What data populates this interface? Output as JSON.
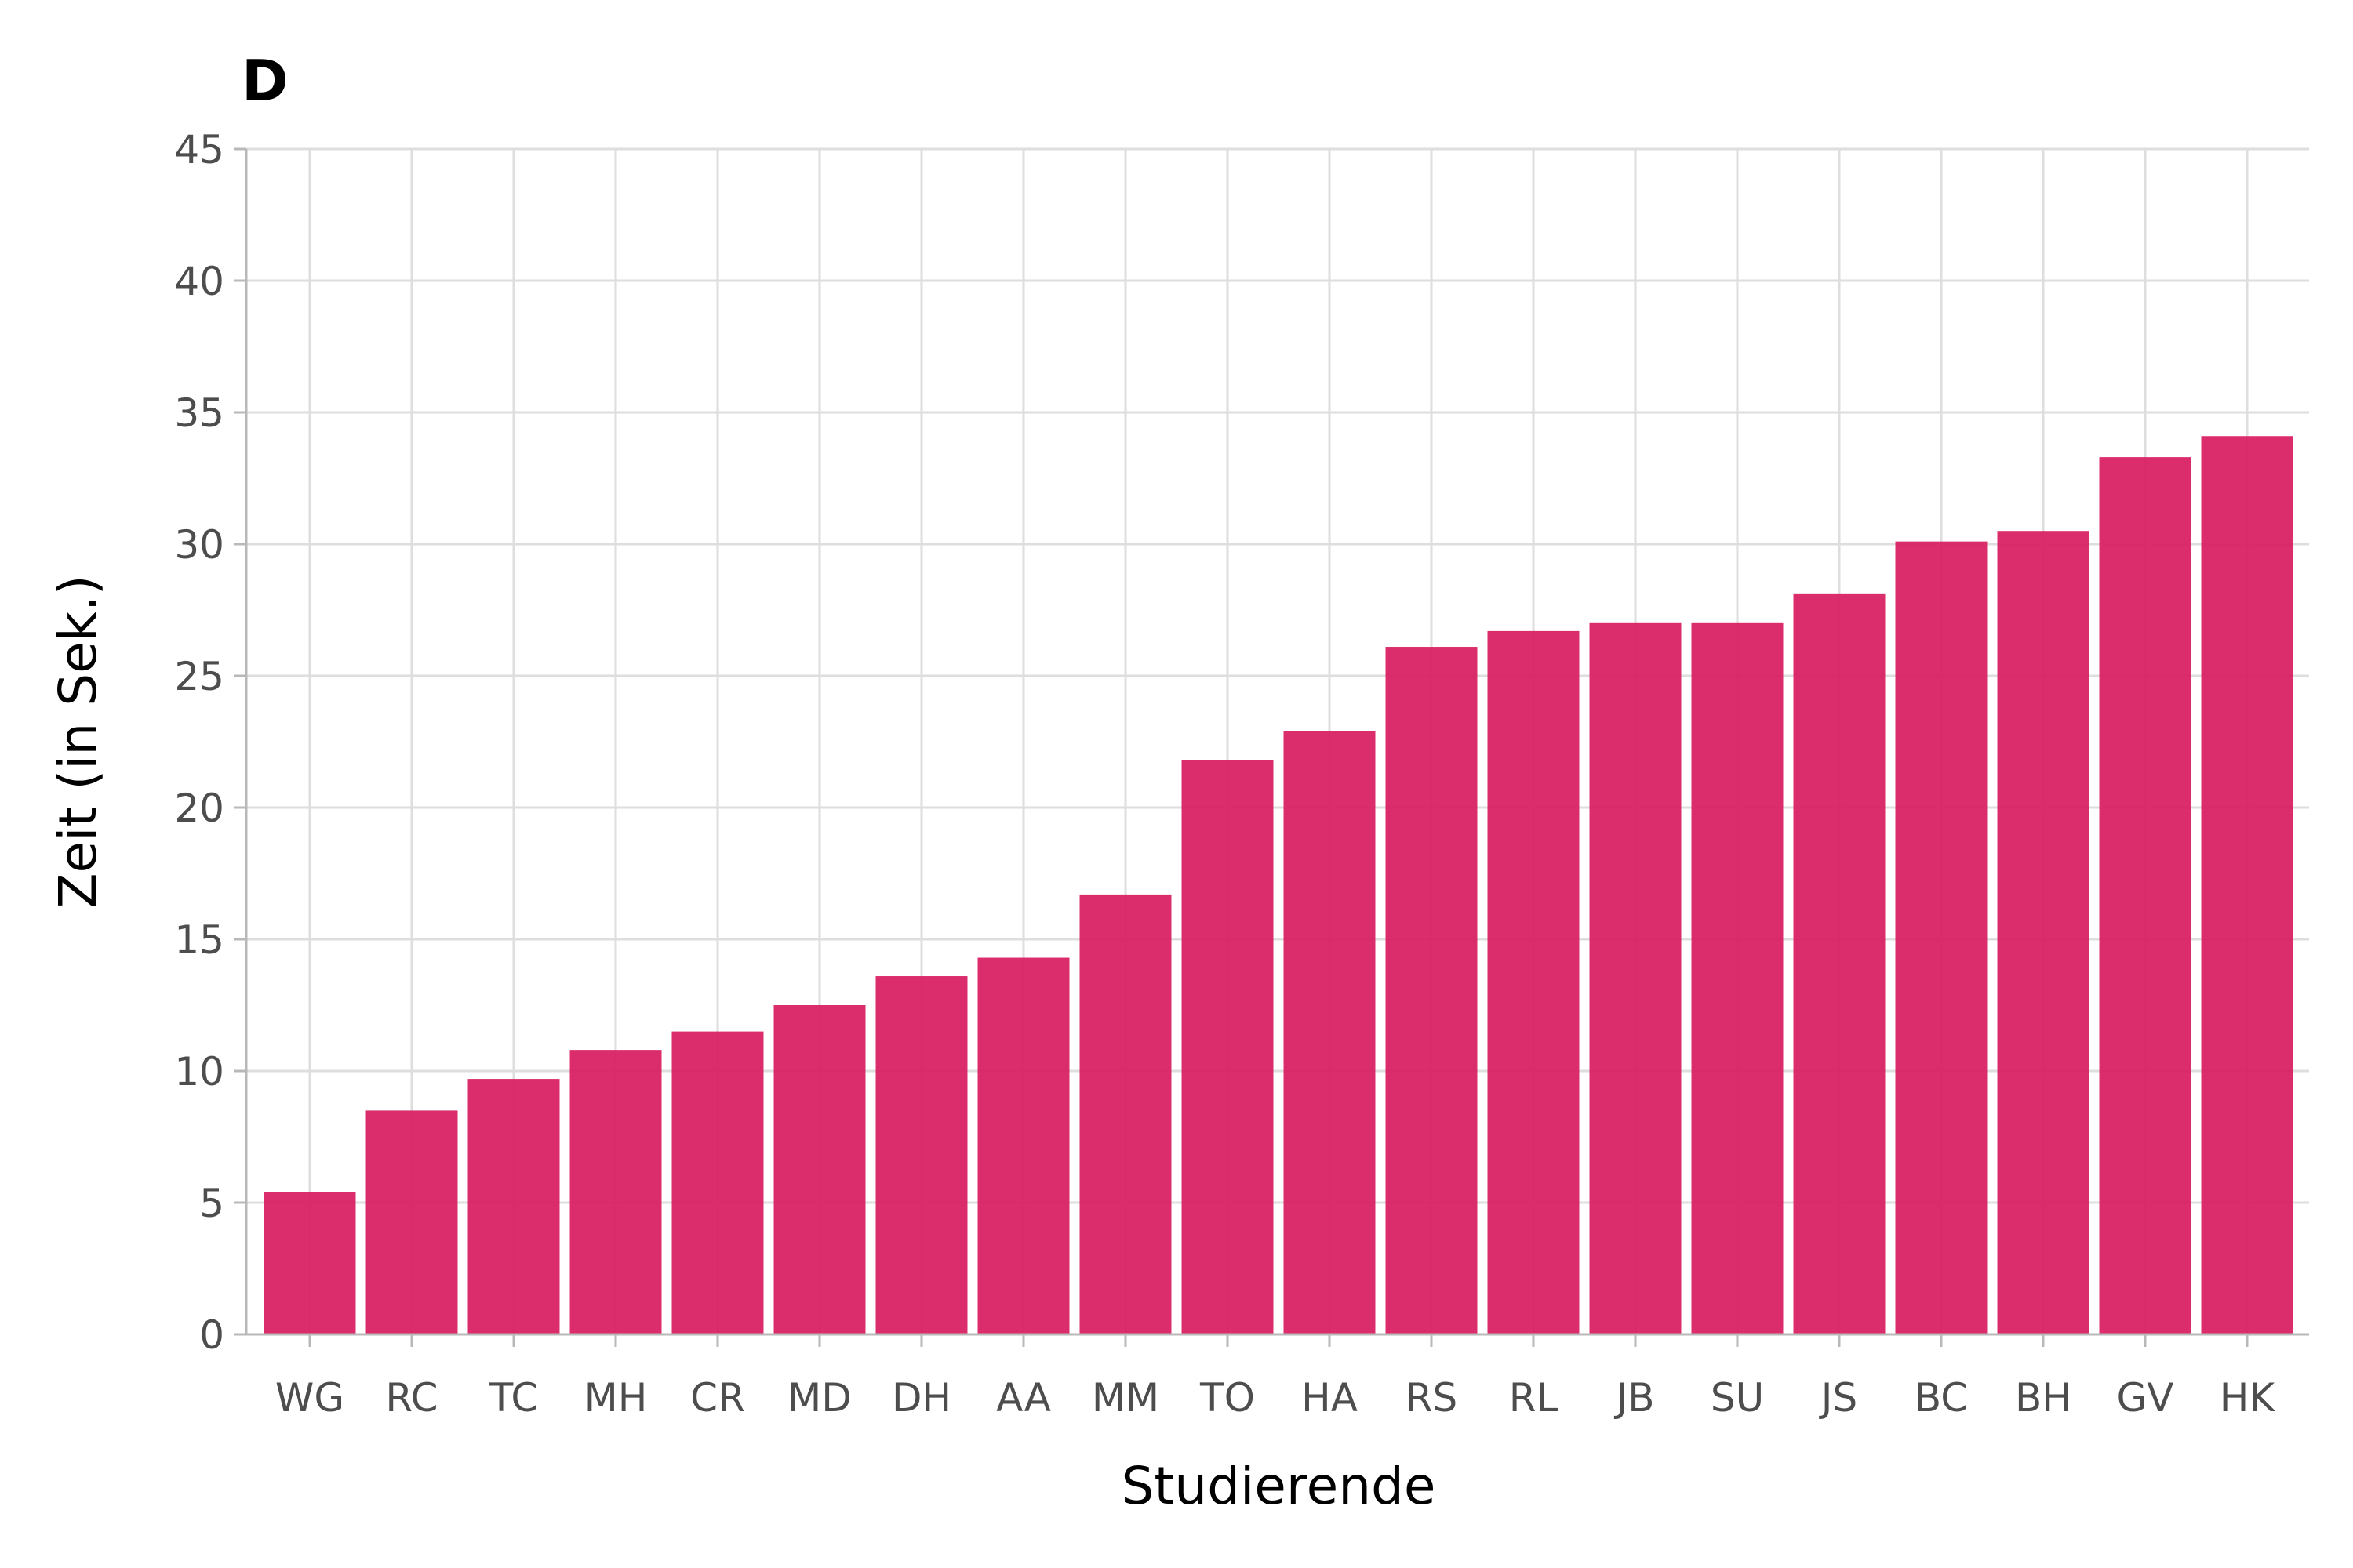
{
  "chart_data": {
    "type": "bar",
    "title": "D",
    "xlabel": "Studierende",
    "ylabel": "Zeit (in Sek.)",
    "categories": [
      "WG",
      "RC",
      "TC",
      "MH",
      "CR",
      "MD",
      "DH",
      "AA",
      "MM",
      "TO",
      "HA",
      "RS",
      "RL",
      "JB",
      "SU",
      "JS",
      "BC",
      "BH",
      "GV",
      "HK"
    ],
    "values": [
      5.4,
      8.5,
      9.7,
      10.8,
      11.5,
      12.5,
      13.6,
      14.3,
      16.7,
      21.8,
      22.9,
      26.1,
      26.7,
      27.0,
      27.0,
      28.1,
      30.1,
      30.5,
      33.3,
      34.1
    ],
    "ylim": [
      0,
      45
    ],
    "yticks": [
      0,
      5,
      10,
      15,
      20,
      25,
      30,
      35,
      40,
      45
    ],
    "grid": true,
    "bar_color": "#d81b60"
  }
}
